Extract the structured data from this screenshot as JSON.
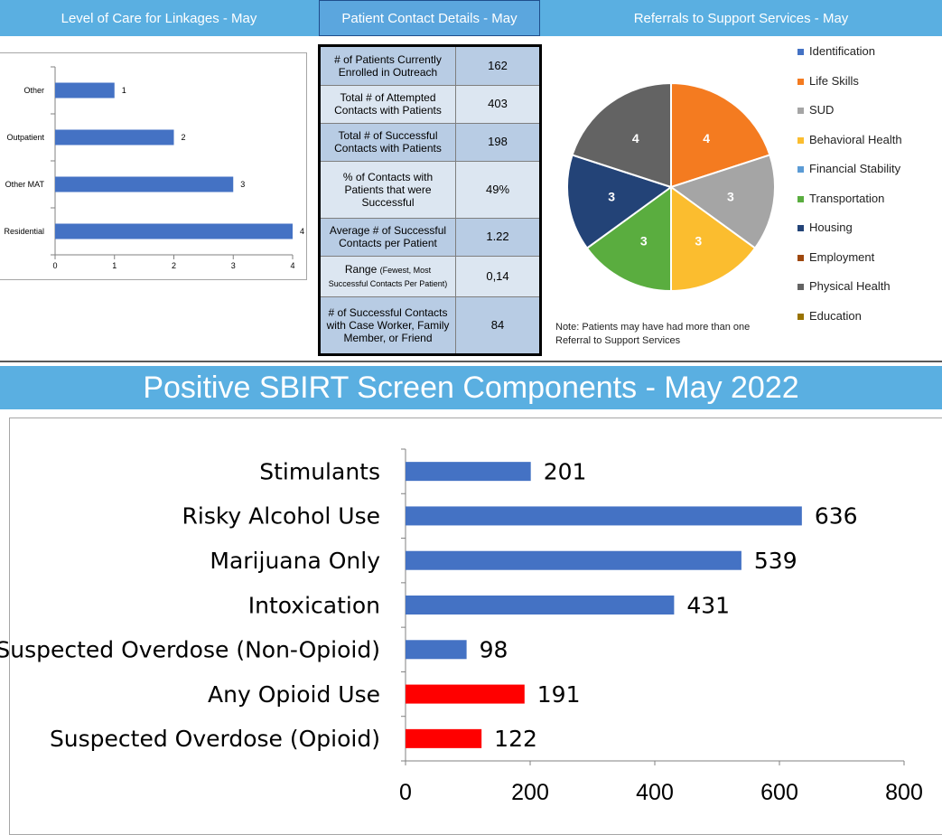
{
  "header": {
    "linkages_title": "Level of Care for Linkages - May",
    "contact_title": "Patient Contact Details - May",
    "referrals_title": "Referrals to Support Services - May"
  },
  "contact_table": {
    "rows": [
      {
        "label": "# of Patients Currently Enrolled in Outreach",
        "value": "162"
      },
      {
        "label": "Total # of Attempted Contacts with Patients",
        "value": "403"
      },
      {
        "label": "Total # of Successful Contacts with Patients",
        "value": "198"
      },
      {
        "label": "% of Contacts with Patients that were Successful",
        "value": "49%"
      },
      {
        "label": "Average # of Successful Contacts per Patient",
        "value": "1.22"
      },
      {
        "label": "Range",
        "sub": "(Fewest, Most Successful Contacts Per Patient)",
        "value": "0,14"
      },
      {
        "label": "# of Successful Contacts with Case Worker, Family Member, or Friend",
        "value": "84"
      }
    ]
  },
  "referrals_note": "Note: Patients may have had more than one Referral to Support Services",
  "chart_data": [
    {
      "type": "bar",
      "orientation": "horizontal",
      "title": "Level of Care for Linkages - May",
      "categories": [
        "Other",
        "Outpatient",
        "Other MAT",
        "Residential"
      ],
      "values": [
        1,
        2,
        3,
        4
      ],
      "xlim": [
        0,
        4
      ],
      "xticks": [
        0,
        1,
        2,
        3,
        4
      ],
      "color": "#4472c4"
    },
    {
      "type": "pie",
      "title": "Referrals to Support Services - May",
      "legend": [
        {
          "name": "Identification",
          "color": "#4472c4"
        },
        {
          "name": "Life Skills",
          "color": "#f47b20"
        },
        {
          "name": "SUD",
          "color": "#a5a5a5"
        },
        {
          "name": "Behavioral Health",
          "color": "#fbbd2f"
        },
        {
          "name": "Financial Stability",
          "color": "#5b9bd5"
        },
        {
          "name": "Transportation",
          "color": "#5aad3f"
        },
        {
          "name": "Housing",
          "color": "#234377"
        },
        {
          "name": "Employment",
          "color": "#9e480e"
        },
        {
          "name": "Physical Health",
          "color": "#636363"
        },
        {
          "name": "Education",
          "color": "#997300"
        }
      ],
      "slices": [
        {
          "name": "Life Skills",
          "value": 4,
          "color": "#f47b20"
        },
        {
          "name": "SUD",
          "value": 3,
          "color": "#a5a5a5"
        },
        {
          "name": "Behavioral Health",
          "value": 3,
          "color": "#fbbd2f"
        },
        {
          "name": "Transportation",
          "value": 3,
          "color": "#5aad3f"
        },
        {
          "name": "Housing",
          "value": 3,
          "color": "#234377"
        },
        {
          "name": "Physical Health",
          "value": 4,
          "color": "#636363"
        }
      ]
    },
    {
      "type": "bar",
      "orientation": "horizontal",
      "title": "Positive SBIRT Screen Components - May 2022",
      "categories": [
        "Stimulants",
        "Risky Alcohol Use",
        "Marijuana Only",
        "Intoxication",
        "Suspected Overdose (Non-Opioid)",
        "Any Opioid Use",
        "Suspected Overdose (Opioid)"
      ],
      "values": [
        201,
        636,
        539,
        431,
        98,
        191,
        122
      ],
      "colors": [
        "#4472c4",
        "#4472c4",
        "#4472c4",
        "#4472c4",
        "#4472c4",
        "#ff0000",
        "#ff0000"
      ],
      "xlim": [
        0,
        800
      ],
      "xticks": [
        0,
        200,
        400,
        600,
        800
      ]
    }
  ]
}
